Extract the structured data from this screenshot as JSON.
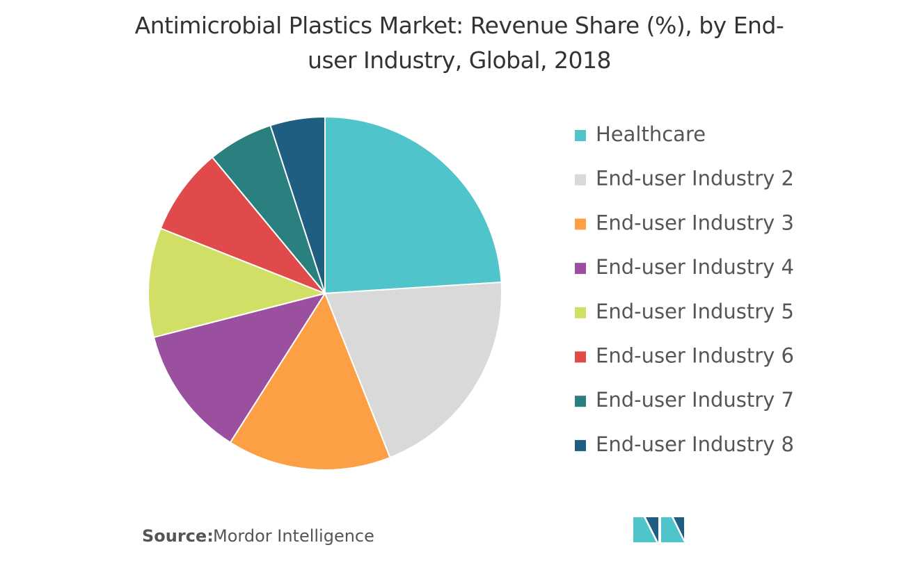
{
  "chart_data": {
    "type": "pie",
    "title": "Antimicrobial Plastics Market: Revenue Share (%), by End-user Industry, Global, 2018",
    "categories": [
      "Healthcare",
      "End-user Industry 2",
      "End-user Industry 3",
      "End-user Industry 4",
      "End-user Industry 5",
      "End-user Industry 6",
      "End-user Industry 7",
      "End-user Industry 8"
    ],
    "values": [
      24,
      20,
      15,
      12,
      10,
      8,
      6,
      5
    ],
    "colors": [
      "#4fc4cb",
      "#d9d9d9",
      "#fd9f45",
      "#9b4f9f",
      "#d2df66",
      "#e04a4a",
      "#2a7f7f",
      "#1f5e80"
    ],
    "source_label": "Source:",
    "source": "Mordor Intelligence"
  }
}
